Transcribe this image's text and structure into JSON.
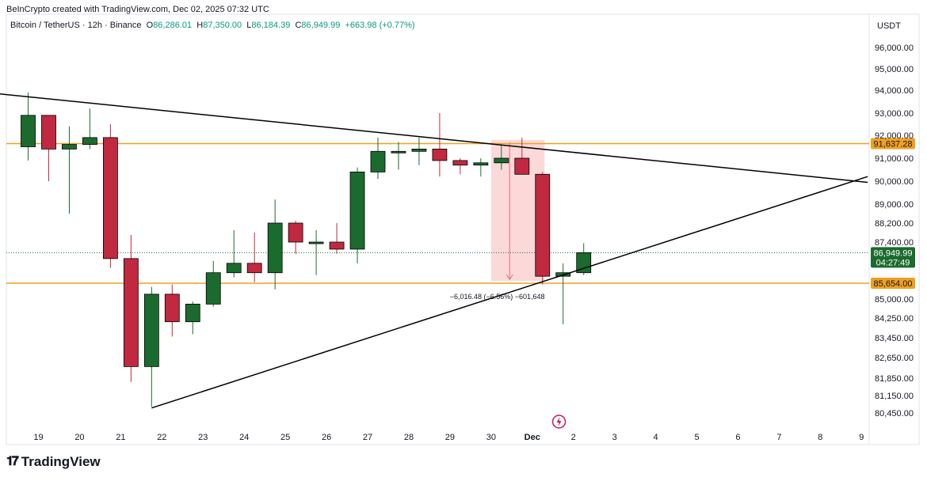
{
  "header": {
    "attribution": "BeInCrypto created with TradingView.com, Dec 02, 2025 07:32 UTC"
  },
  "symbol_bar": {
    "name": "Bitcoin / TetherUS · 12h · Binance",
    "o_label": "O",
    "o_value": "86,286.01",
    "h_label": "H",
    "h_value": "87,350.00",
    "l_label": "L",
    "l_value": "86,184.39",
    "c_label": "C",
    "c_value": "86,949.99",
    "change": "+663.98 (+0.77%)"
  },
  "footer": {
    "brand": "TradingView"
  },
  "colors": {
    "up": "#1b6b2e",
    "down": "#c0293f",
    "level": "#f0a020",
    "trendline": "#000000",
    "shade": "#f8b4b4"
  },
  "chart_data": {
    "type": "candlestick",
    "currency_label": "USDT",
    "price_ticks": [
      "96,000.00",
      "95,000.00",
      "94,000.00",
      "93,000.00",
      "92,000.00",
      "91,000.00",
      "90,000.00",
      "89,000.00",
      "88,200.00",
      "87,400.00",
      "85,000.00",
      "84,250.00",
      "83,450.00",
      "82,650.00",
      "81,850.00",
      "81,150.00",
      "80,450.00"
    ],
    "x_ticks": [
      {
        "label": "19",
        "x": 0
      },
      {
        "label": "20",
        "x": 2
      },
      {
        "label": "21",
        "x": 4
      },
      {
        "label": "22",
        "x": 6
      },
      {
        "label": "23",
        "x": 8
      },
      {
        "label": "24",
        "x": 10
      },
      {
        "label": "25",
        "x": 12
      },
      {
        "label": "26",
        "x": 14
      },
      {
        "label": "27",
        "x": 16
      },
      {
        "label": "28",
        "x": 18
      },
      {
        "label": "29",
        "x": 20
      },
      {
        "label": "30",
        "x": 22
      },
      {
        "label": "Dec",
        "x": 24
      },
      {
        "label": "2",
        "x": 26
      },
      {
        "label": "3",
        "x": 28
      },
      {
        "label": "4",
        "x": 30
      },
      {
        "label": "5",
        "x": 32
      },
      {
        "label": "6",
        "x": 34
      },
      {
        "label": "7",
        "x": 36
      },
      {
        "label": "8",
        "x": 38
      },
      {
        "label": "9",
        "x": 40
      }
    ],
    "candles": [
      {
        "x": -0.5,
        "o": 91500,
        "h": 93900,
        "l": 90900,
        "c": 92900
      },
      {
        "x": 0.5,
        "o": 92900,
        "h": 92900,
        "l": 90000,
        "c": 91400
      },
      {
        "x": 1.5,
        "o": 91400,
        "h": 92400,
        "l": 88600,
        "c": 91600
      },
      {
        "x": 2.5,
        "o": 91600,
        "h": 93200,
        "l": 91400,
        "c": 91900
      },
      {
        "x": 3.5,
        "o": 91900,
        "h": 92500,
        "l": 86300,
        "c": 86700
      },
      {
        "x": 4.5,
        "o": 86700,
        "h": 87700,
        "l": 81700,
        "c": 82300
      },
      {
        "x": 5.5,
        "o": 82300,
        "h": 85500,
        "l": 80700,
        "c": 85200
      },
      {
        "x": 6.5,
        "o": 85200,
        "h": 85600,
        "l": 83500,
        "c": 84100
      },
      {
        "x": 7.5,
        "o": 84100,
        "h": 84900,
        "l": 83600,
        "c": 84800
      },
      {
        "x": 8.5,
        "o": 84800,
        "h": 86600,
        "l": 84700,
        "c": 86100
      },
      {
        "x": 9.5,
        "o": 86100,
        "h": 87900,
        "l": 85900,
        "c": 86500
      },
      {
        "x": 10.5,
        "o": 86500,
        "h": 87800,
        "l": 85700,
        "c": 86100
      },
      {
        "x": 11.5,
        "o": 86100,
        "h": 89200,
        "l": 85400,
        "c": 88200
      },
      {
        "x": 12.5,
        "o": 88200,
        "h": 88300,
        "l": 86900,
        "c": 87400
      },
      {
        "x": 13.5,
        "o": 87400,
        "h": 87900,
        "l": 86000,
        "c": 87400
      },
      {
        "x": 14.5,
        "o": 87400,
        "h": 88200,
        "l": 86900,
        "c": 87100
      },
      {
        "x": 15.5,
        "o": 87100,
        "h": 90600,
        "l": 86500,
        "c": 90400
      },
      {
        "x": 16.5,
        "o": 90400,
        "h": 91900,
        "l": 90100,
        "c": 91300
      },
      {
        "x": 17.5,
        "o": 91300,
        "h": 91700,
        "l": 90500,
        "c": 91300
      },
      {
        "x": 18.5,
        "o": 91300,
        "h": 91900,
        "l": 90700,
        "c": 91400
      },
      {
        "x": 19.5,
        "o": 91400,
        "h": 93000,
        "l": 90200,
        "c": 90900
      },
      {
        "x": 20.5,
        "o": 90900,
        "h": 91000,
        "l": 90300,
        "c": 90700
      },
      {
        "x": 21.5,
        "o": 90700,
        "h": 91000,
        "l": 90200,
        "c": 90800
      },
      {
        "x": 22.5,
        "o": 90800,
        "h": 91600,
        "l": 90500,
        "c": 91000
      },
      {
        "x": 23.5,
        "o": 91000,
        "h": 91900,
        "l": 90300,
        "c": 90300
      },
      {
        "x": 24.5,
        "o": 90300,
        "h": 90400,
        "l": 85600,
        "c": 85950
      },
      {
        "x": 25.5,
        "o": 85950,
        "h": 86500,
        "l": 84000,
        "c": 86100
      },
      {
        "x": 26.5,
        "o": 86100,
        "h": 87350,
        "l": 86000,
        "c": 86950
      }
    ],
    "levels": [
      {
        "price": 91637.28,
        "label": "91,637.28"
      },
      {
        "price": 85654.0,
        "label": "85,654.00"
      }
    ],
    "current_price": {
      "price": 86949.99,
      "label": "86,949.99",
      "countdown": "04:27:49"
    },
    "trendlines": [
      {
        "x1": -2,
        "y1": 93850,
        "x2": 40.3,
        "y2": 89950
      },
      {
        "x1": 5.5,
        "y1": 80650,
        "x2": 40.3,
        "y2": 90200
      }
    ],
    "measure": {
      "x1": 22,
      "x2": 24.6,
      "p1": 91800,
      "p2": 85750,
      "label": "−6,016.48 (−6.56%) −601,648"
    }
  }
}
